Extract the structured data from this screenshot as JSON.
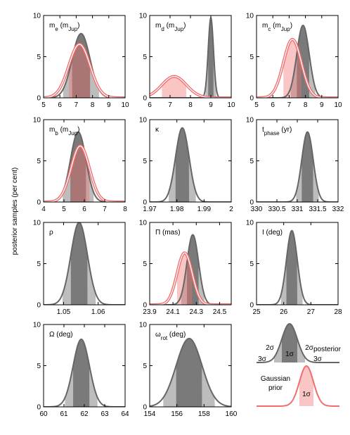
{
  "ylabel": "posterior samples (per cent)",
  "chart_data": [
    {
      "type": "density",
      "title": [
        {
          "text": "m"
        },
        {
          "text": "e",
          "sub": true
        },
        {
          "text": " (m"
        },
        {
          "text": "Jup",
          "sub": true
        },
        {
          "text": ")"
        }
      ],
      "xlim": [
        5,
        10
      ],
      "xticks": [
        5,
        6,
        7,
        8,
        9,
        10
      ],
      "ylim": [
        0,
        10
      ],
      "yticks": [
        0,
        5,
        10
      ],
      "posterior": {
        "mean": 7.3,
        "sigma": 0.55,
        "peak": 7.8,
        "color": "#666666"
      },
      "prior": {
        "mean": 7.2,
        "sigma": 0.65,
        "peak": 6.5,
        "color": "#f26d6d"
      }
    },
    {
      "type": "density",
      "title": [
        {
          "text": "m"
        },
        {
          "text": "d",
          "sub": true
        },
        {
          "text": " (m"
        },
        {
          "text": "Jup",
          "sub": true
        },
        {
          "text": ")"
        }
      ],
      "xlim": [
        6,
        10
      ],
      "xticks": [
        6,
        7,
        8,
        9,
        10
      ],
      "ylim": [
        0,
        10
      ],
      "yticks": [
        0,
        5,
        10
      ],
      "posterior": {
        "mean": 9.0,
        "sigma": 0.13,
        "peak": 9.7,
        "color": "#666666"
      },
      "prior": {
        "mean": 7.2,
        "sigma": 0.6,
        "peak": 2.6,
        "color": "#f26d6d"
      }
    },
    {
      "type": "density",
      "title": [
        {
          "text": "m"
        },
        {
          "text": "c",
          "sub": true
        },
        {
          "text": " (m"
        },
        {
          "text": "Jup",
          "sub": true
        },
        {
          "text": ")"
        }
      ],
      "xlim": [
        5,
        10
      ],
      "xticks": [
        5,
        6,
        7,
        8,
        9,
        10
      ],
      "ylim": [
        0,
        10
      ],
      "yticks": [
        0,
        5,
        10
      ],
      "posterior": {
        "mean": 7.85,
        "sigma": 0.38,
        "peak": 8.8,
        "color": "#666666"
      },
      "prior": {
        "mean": 7.2,
        "sigma": 0.55,
        "peak": 7.1,
        "color": "#f26d6d"
      }
    },
    {
      "type": "density",
      "title": [
        {
          "text": "m"
        },
        {
          "text": "b",
          "sub": true
        },
        {
          "text": " (m"
        },
        {
          "text": "Jup",
          "sub": true
        },
        {
          "text": ")"
        }
      ],
      "xlim": [
        4,
        8
      ],
      "xticks": [
        4,
        5,
        6,
        7,
        8
      ],
      "ylim": [
        0,
        10
      ],
      "yticks": [
        0,
        5,
        10
      ],
      "posterior": {
        "mean": 5.7,
        "sigma": 0.38,
        "peak": 8.5,
        "color": "#666666"
      },
      "prior": {
        "mean": 5.8,
        "sigma": 0.45,
        "peak": 6.8,
        "color": "#f26d6d"
      }
    },
    {
      "type": "density",
      "title": [
        {
          "text": "κ"
        }
      ],
      "xlim": [
        1.97,
        2
      ],
      "xticks": [
        1.97,
        1.98,
        1.99,
        2
      ],
      "ylim": [
        0,
        10
      ],
      "yticks": [
        0,
        5,
        10
      ],
      "posterior": {
        "mean": 1.982,
        "sigma": 0.0025,
        "peak": 9.0,
        "color": "#666666"
      }
    },
    {
      "type": "density",
      "title": [
        {
          "text": "t"
        },
        {
          "text": "phase",
          "sub": true
        },
        {
          "text": " (yr)"
        }
      ],
      "xlim": [
        330,
        332
      ],
      "xticks": [
        330,
        330.5,
        331,
        331.5,
        332
      ],
      "ylim": [
        0,
        10
      ],
      "yticks": [
        0,
        5,
        10
      ],
      "posterior": {
        "mean": 331.25,
        "sigma": 0.14,
        "peak": 8.5,
        "color": "#666666"
      }
    },
    {
      "type": "density",
      "title": [
        {
          "text": "ρ"
        }
      ],
      "xlim": [
        1.0442,
        1.0678
      ],
      "xticks": [
        1.05,
        1.06
      ],
      "ylim": [
        0,
        10
      ],
      "yticks": [
        0,
        5,
        10
      ],
      "posterior": {
        "mean": 1.0545,
        "sigma": 0.0024,
        "peak": 10.0,
        "color": "#666666"
      }
    },
    {
      "type": "density",
      "title": [
        {
          "text": "Π (mas)"
        }
      ],
      "xlim": [
        23.9,
        24.6
      ],
      "xticks": [
        23.9,
        24.1,
        24.3,
        24.5
      ],
      "ylim": [
        0,
        10
      ],
      "yticks": [
        0,
        5,
        10
      ],
      "posterior": {
        "mean": 24.27,
        "sigma": 0.05,
        "peak": 8.5,
        "color": "#666666"
      },
      "prior": {
        "mean": 24.2,
        "sigma": 0.065,
        "peak": 6.3,
        "color": "#f26d6d"
      }
    },
    {
      "type": "density",
      "title": [
        {
          "text": "I (deg)"
        }
      ],
      "xlim": [
        25,
        28
      ],
      "xticks": [
        25,
        26,
        27,
        28
      ],
      "ylim": [
        0,
        10
      ],
      "yticks": [
        0,
        5,
        10
      ],
      "posterior": {
        "mean": 26.3,
        "sigma": 0.2,
        "peak": 9.0,
        "color": "#666666"
      }
    },
    {
      "type": "density",
      "title": [
        {
          "text": "Ω (deg)"
        }
      ],
      "xlim": [
        60,
        64
      ],
      "xticks": [
        60,
        61,
        62,
        63,
        64
      ],
      "ylim": [
        0,
        10
      ],
      "yticks": [
        0,
        5,
        10
      ],
      "posterior": {
        "mean": 61.85,
        "sigma": 0.4,
        "peak": 8.2,
        "color": "#666666"
      }
    },
    {
      "type": "density",
      "title": [
        {
          "text": "ω"
        },
        {
          "text": "rot",
          "sub": true
        },
        {
          "text": " (deg)"
        }
      ],
      "xlim": [
        154,
        160
      ],
      "xticks": [
        154,
        156,
        158,
        160
      ],
      "ylim": [
        0,
        10
      ],
      "yticks": [
        0,
        5,
        10
      ],
      "posterior": {
        "mean": 156.9,
        "sigma": 0.95,
        "peak": 8.3,
        "color": "#666666"
      }
    }
  ],
  "legend": {
    "posterior_label": "posterior",
    "sigma_labels": [
      "3σ",
      "2σ",
      "1σ",
      "2σ",
      "3σ"
    ],
    "prior_label": [
      "Gaussian",
      "prior"
    ],
    "prior_sigma_label": "1σ"
  }
}
